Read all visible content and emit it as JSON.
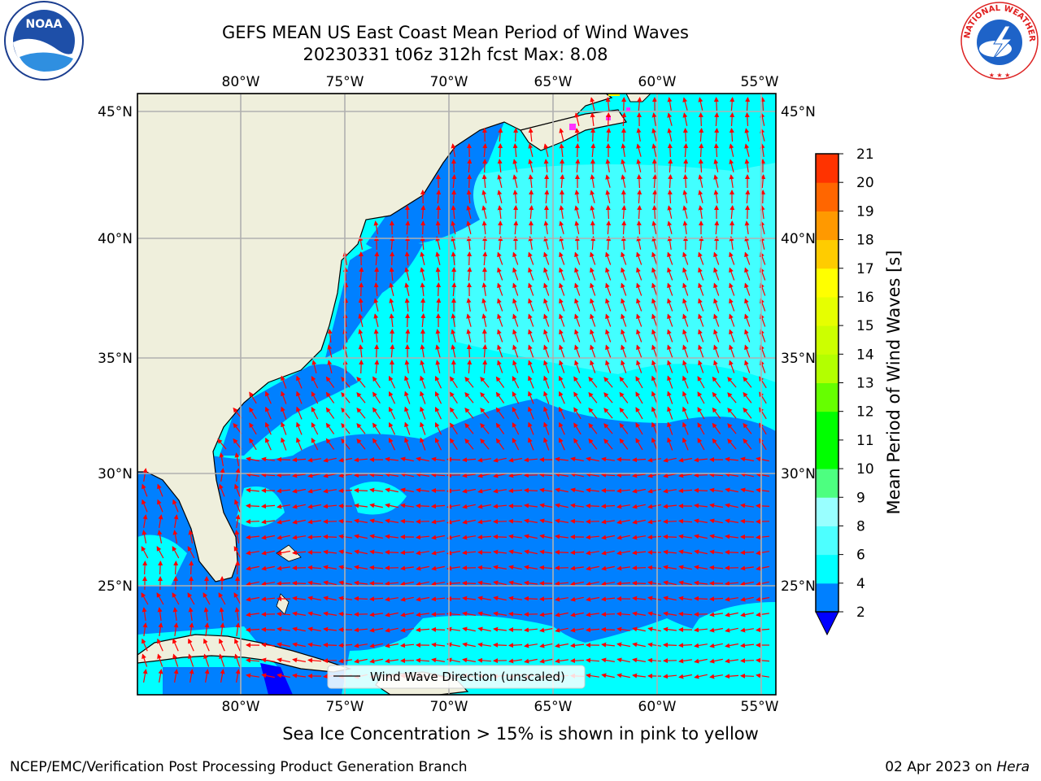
{
  "title": {
    "line1": "GEFS MEAN US East Coast Mean Period of Wind Waves",
    "line2": "20230331 t06z 312h fcst   Max: 8.08"
  },
  "logos": {
    "left": "NOAA",
    "right": "NATIONAL WEATHER SERVICE"
  },
  "map": {
    "lon_labels": [
      "80°W",
      "75°W",
      "70°W",
      "65°W",
      "60°W",
      "55°W"
    ],
    "lat_labels": [
      "45°N",
      "40°N",
      "35°N",
      "30°N",
      "25°N"
    ],
    "lon_range": [
      -85,
      -54
    ],
    "lat_range": [
      20.5,
      46
    ],
    "legend_label": "Wind Wave Direction (unscaled)"
  },
  "colorbar": {
    "label": "Mean Period of Wind Waves [s]",
    "ticks": [
      "2",
      "4",
      "6",
      "8",
      "9",
      "10",
      "11",
      "12",
      "13",
      "14",
      "15",
      "16",
      "17",
      "18",
      "19",
      "20",
      "21"
    ],
    "colors": [
      "#0080ff",
      "#00ffff",
      "#4dffff",
      "#99ffff",
      "#4dff80",
      "#00ff00",
      "#00ff00",
      "#66ff00",
      "#b3ff00",
      "#ccff00",
      "#e6ff00",
      "#ffff00",
      "#ffcc00",
      "#ff9900",
      "#ff6600",
      "#ff3300",
      "#ff0000"
    ],
    "under_color": "#0000ff",
    "palette": {
      "land": "#efefdc",
      "blue": "#0080ff",
      "cyan": "#00ffff",
      "light_cyan": "#4dffff",
      "arrow": "#ff0000",
      "grid": "#b0b0b0"
    }
  },
  "caption": "Sea Ice Concentration > 15% is shown in pink to yellow",
  "footer": {
    "left": "NCEP/EMC/Verification Post Processing Product Generation Branch",
    "right_prefix": "02 Apr 2023 on ",
    "right_machine": "Hera"
  }
}
